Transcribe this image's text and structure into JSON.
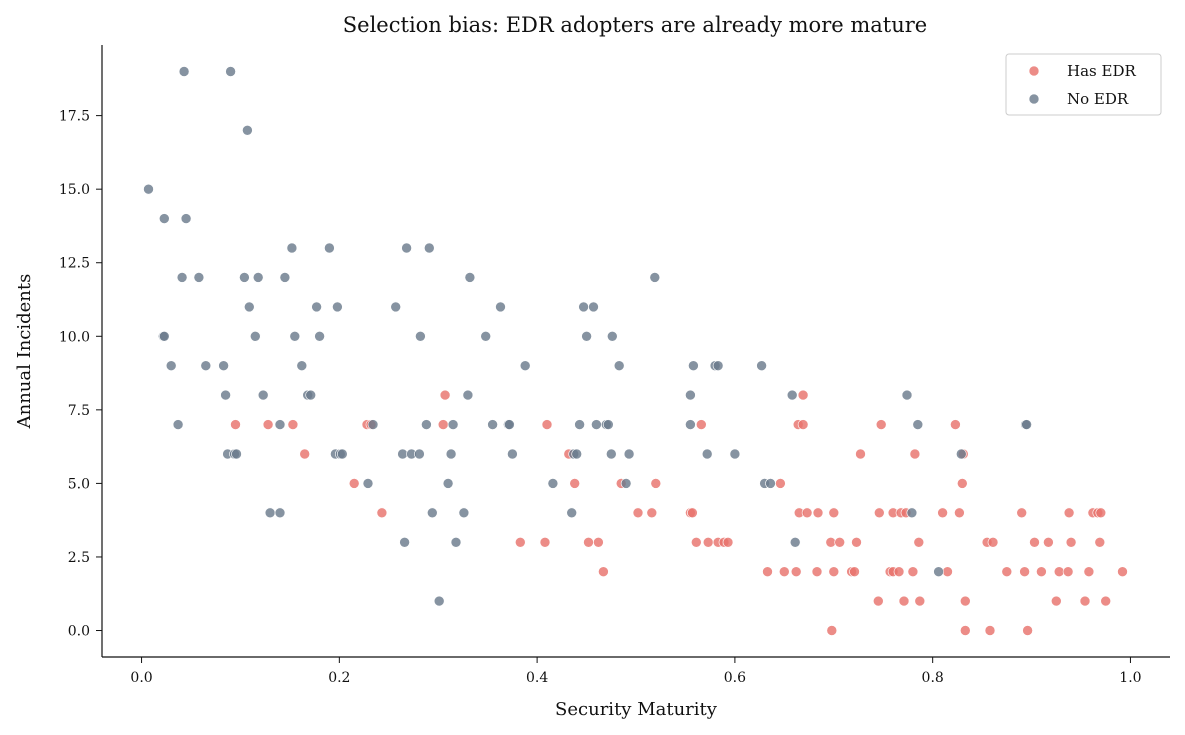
{
  "chart_data": {
    "type": "scatter",
    "title": "Selection bias: EDR adopters are already more mature",
    "xlabel": "Security Maturity",
    "ylabel": "Annual Incidents",
    "xlim": [
      -0.04,
      1.04
    ],
    "ylim": [
      -0.9,
      19.9
    ],
    "xticks": [
      0.0,
      0.2,
      0.4,
      0.6,
      0.8,
      1.0
    ],
    "xtick_labels": [
      "0.0",
      "0.2",
      "0.4",
      "0.6",
      "0.8",
      "1.0"
    ],
    "yticks": [
      0.0,
      2.5,
      5.0,
      7.5,
      10.0,
      12.5,
      15.0,
      17.5
    ],
    "ytick_labels": [
      "0.0",
      "2.5",
      "5.0",
      "7.5",
      "10.0",
      "12.5",
      "15.0",
      "17.5"
    ],
    "grid": false,
    "legend_position": "top-right",
    "series": [
      {
        "name": "Has EDR",
        "color": "#e8736c",
        "points": [
          [
            0.095,
            7
          ],
          [
            0.128,
            7
          ],
          [
            0.153,
            7
          ],
          [
            0.165,
            6
          ],
          [
            0.215,
            5
          ],
          [
            0.228,
            7
          ],
          [
            0.232,
            7
          ],
          [
            0.243,
            4
          ],
          [
            0.305,
            7
          ],
          [
            0.307,
            8
          ],
          [
            0.383,
            3
          ],
          [
            0.408,
            3
          ],
          [
            0.41,
            7
          ],
          [
            0.432,
            6
          ],
          [
            0.438,
            5
          ],
          [
            0.452,
            3
          ],
          [
            0.462,
            3
          ],
          [
            0.467,
            2
          ],
          [
            0.485,
            5
          ],
          [
            0.502,
            4
          ],
          [
            0.516,
            4
          ],
          [
            0.52,
            5
          ],
          [
            0.555,
            4
          ],
          [
            0.557,
            4
          ],
          [
            0.561,
            3
          ],
          [
            0.566,
            7
          ],
          [
            0.573,
            3
          ],
          [
            0.583,
            3
          ],
          [
            0.589,
            3
          ],
          [
            0.593,
            3
          ],
          [
            0.633,
            2
          ],
          [
            0.646,
            5
          ],
          [
            0.65,
            2
          ],
          [
            0.662,
            2
          ],
          [
            0.664,
            7
          ],
          [
            0.665,
            4
          ],
          [
            0.669,
            7
          ],
          [
            0.669,
            8
          ],
          [
            0.673,
            4
          ],
          [
            0.683,
            2
          ],
          [
            0.684,
            4
          ],
          [
            0.697,
            3
          ],
          [
            0.698,
            0
          ],
          [
            0.7,
            4
          ],
          [
            0.7,
            2
          ],
          [
            0.706,
            3
          ],
          [
            0.718,
            2
          ],
          [
            0.721,
            2
          ],
          [
            0.723,
            3
          ],
          [
            0.727,
            6
          ],
          [
            0.745,
            1
          ],
          [
            0.746,
            4
          ],
          [
            0.748,
            7
          ],
          [
            0.757,
            2
          ],
          [
            0.76,
            4
          ],
          [
            0.76,
            2
          ],
          [
            0.766,
            2
          ],
          [
            0.768,
            4
          ],
          [
            0.771,
            1
          ],
          [
            0.773,
            4
          ],
          [
            0.78,
            2
          ],
          [
            0.782,
            6
          ],
          [
            0.786,
            3
          ],
          [
            0.787,
            1
          ],
          [
            0.81,
            4
          ],
          [
            0.815,
            2
          ],
          [
            0.823,
            7
          ],
          [
            0.827,
            4
          ],
          [
            0.83,
            5
          ],
          [
            0.831,
            6
          ],
          [
            0.833,
            1
          ],
          [
            0.833,
            0
          ],
          [
            0.855,
            3
          ],
          [
            0.858,
            0
          ],
          [
            0.861,
            3
          ],
          [
            0.875,
            2
          ],
          [
            0.89,
            4
          ],
          [
            0.893,
            2
          ],
          [
            0.896,
            0
          ],
          [
            0.903,
            3
          ],
          [
            0.91,
            2
          ],
          [
            0.917,
            3
          ],
          [
            0.925,
            1
          ],
          [
            0.928,
            2
          ],
          [
            0.937,
            2
          ],
          [
            0.938,
            4
          ],
          [
            0.94,
            3
          ],
          [
            0.954,
            1
          ],
          [
            0.958,
            2
          ],
          [
            0.962,
            4
          ],
          [
            0.967,
            4
          ],
          [
            0.969,
            3
          ],
          [
            0.97,
            4
          ],
          [
            0.975,
            1
          ],
          [
            0.992,
            2
          ]
        ]
      },
      {
        "name": "No EDR",
        "color": "#6b7b8c",
        "points": [
          [
            0.007,
            15
          ],
          [
            0.022,
            10
          ],
          [
            0.023,
            10
          ],
          [
            0.023,
            14
          ],
          [
            0.03,
            9
          ],
          [
            0.037,
            7
          ],
          [
            0.041,
            12
          ],
          [
            0.043,
            19
          ],
          [
            0.045,
            14
          ],
          [
            0.058,
            12
          ],
          [
            0.065,
            9
          ],
          [
            0.083,
            9
          ],
          [
            0.085,
            8
          ],
          [
            0.087,
            6
          ],
          [
            0.09,
            19
          ],
          [
            0.094,
            6
          ],
          [
            0.096,
            6
          ],
          [
            0.104,
            12
          ],
          [
            0.107,
            17
          ],
          [
            0.109,
            11
          ],
          [
            0.115,
            10
          ],
          [
            0.118,
            12
          ],
          [
            0.123,
            8
          ],
          [
            0.13,
            4
          ],
          [
            0.14,
            4
          ],
          [
            0.14,
            7
          ],
          [
            0.145,
            12
          ],
          [
            0.152,
            13
          ],
          [
            0.155,
            10
          ],
          [
            0.162,
            9
          ],
          [
            0.168,
            8
          ],
          [
            0.171,
            8
          ],
          [
            0.177,
            11
          ],
          [
            0.18,
            10
          ],
          [
            0.19,
            13
          ],
          [
            0.196,
            6
          ],
          [
            0.198,
            11
          ],
          [
            0.201,
            6
          ],
          [
            0.203,
            6
          ],
          [
            0.229,
            5
          ],
          [
            0.234,
            7
          ],
          [
            0.257,
            11
          ],
          [
            0.264,
            6
          ],
          [
            0.266,
            3
          ],
          [
            0.268,
            13
          ],
          [
            0.273,
            6
          ],
          [
            0.281,
            6
          ],
          [
            0.282,
            10
          ],
          [
            0.288,
            7
          ],
          [
            0.291,
            13
          ],
          [
            0.294,
            4
          ],
          [
            0.301,
            1
          ],
          [
            0.31,
            5
          ],
          [
            0.313,
            6
          ],
          [
            0.315,
            7
          ],
          [
            0.318,
            3
          ],
          [
            0.326,
            4
          ],
          [
            0.33,
            8
          ],
          [
            0.332,
            12
          ],
          [
            0.348,
            10
          ],
          [
            0.355,
            7
          ],
          [
            0.363,
            11
          ],
          [
            0.371,
            7
          ],
          [
            0.372,
            7
          ],
          [
            0.375,
            6
          ],
          [
            0.388,
            9
          ],
          [
            0.416,
            5
          ],
          [
            0.435,
            4
          ],
          [
            0.437,
            6
          ],
          [
            0.44,
            6
          ],
          [
            0.443,
            7
          ],
          [
            0.447,
            11
          ],
          [
            0.45,
            10
          ],
          [
            0.457,
            11
          ],
          [
            0.46,
            7
          ],
          [
            0.47,
            7
          ],
          [
            0.472,
            7
          ],
          [
            0.475,
            6
          ],
          [
            0.476,
            10
          ],
          [
            0.483,
            9
          ],
          [
            0.49,
            5
          ],
          [
            0.493,
            6
          ],
          [
            0.519,
            12
          ],
          [
            0.555,
            7
          ],
          [
            0.555,
            8
          ],
          [
            0.558,
            9
          ],
          [
            0.572,
            6
          ],
          [
            0.58,
            9
          ],
          [
            0.583,
            9
          ],
          [
            0.6,
            6
          ],
          [
            0.627,
            9
          ],
          [
            0.63,
            5
          ],
          [
            0.636,
            5
          ],
          [
            0.658,
            8
          ],
          [
            0.661,
            3
          ],
          [
            0.774,
            8
          ],
          [
            0.779,
            4
          ],
          [
            0.785,
            7
          ],
          [
            0.806,
            2
          ],
          [
            0.829,
            6
          ],
          [
            0.894,
            7
          ],
          [
            0.895,
            7
          ]
        ]
      }
    ]
  }
}
